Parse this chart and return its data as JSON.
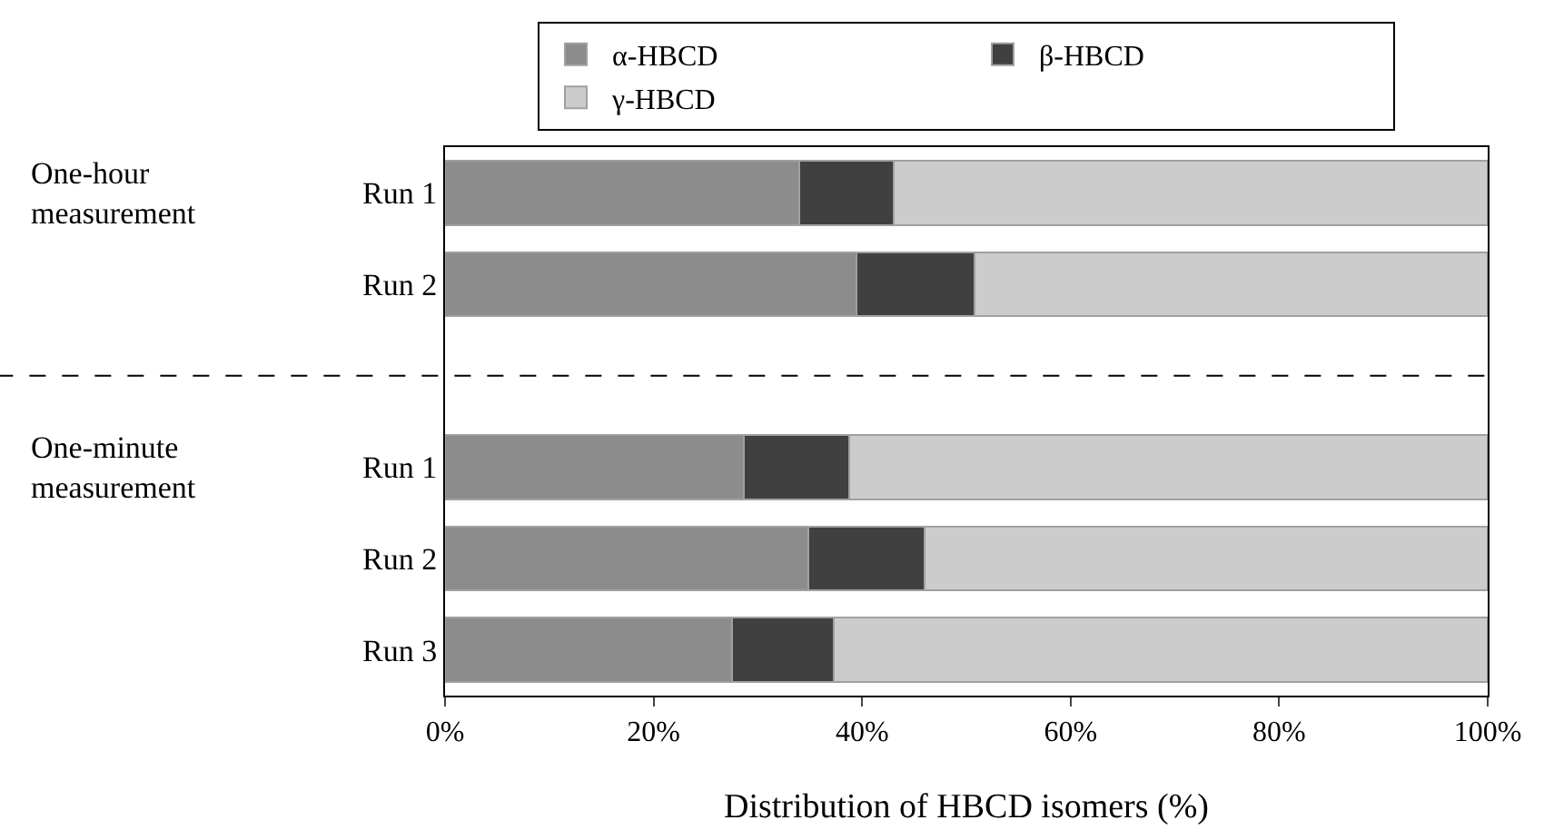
{
  "chart_data": {
    "type": "bar",
    "orientation": "horizontal",
    "stacked": true,
    "xlabel": "Distribution of HBCD isomers (%)",
    "categories": [
      "Run 1",
      "Run 2",
      null,
      "Run 1",
      "Run 2",
      "Run 3"
    ],
    "series": [
      {
        "name": "α-HBCD",
        "color": "#8c8c8c",
        "values": [
          34,
          39.5,
          null,
          28.7,
          34.8,
          27.5
        ]
      },
      {
        "name": "β-HBCD",
        "color": "#404040",
        "values": [
          9,
          11.3,
          null,
          10.1,
          11.2,
          9.8
        ]
      },
      {
        "name": "γ-HBCD",
        "color": "#cccccc",
        "values": [
          57,
          49.2,
          null,
          61.2,
          54,
          62.7
        ]
      }
    ],
    "xlim": [
      0,
      100
    ],
    "xticks": [
      {
        "value": 0,
        "label": "0%"
      },
      {
        "value": 20,
        "label": "20%"
      },
      {
        "value": 40,
        "label": "40%"
      },
      {
        "value": 60,
        "label": "60%"
      },
      {
        "value": 80,
        "label": "80%"
      },
      {
        "value": 100,
        "label": "100%"
      }
    ],
    "annotations": [
      "One-hour measurement",
      "One-minute measurement"
    ],
    "ref_lines": [
      {
        "axis": "y",
        "value": null,
        "line_style": "dashed",
        "color": "#000000"
      }
    ],
    "grid": false,
    "legend": "top"
  }
}
